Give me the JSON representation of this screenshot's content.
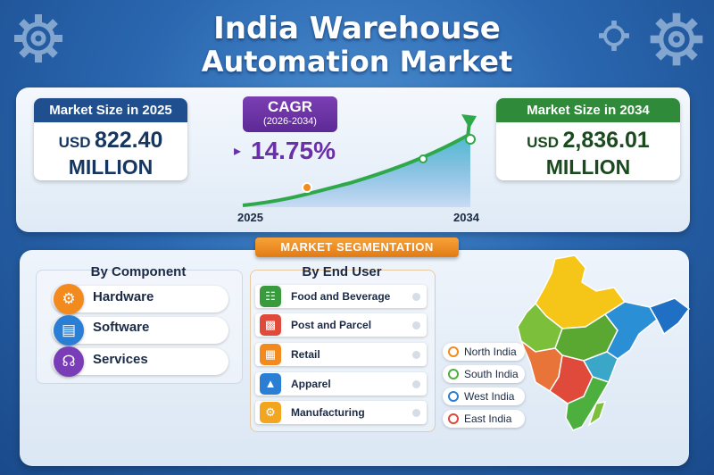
{
  "title": {
    "line1": "India Warehouse",
    "line2": "Automation Market"
  },
  "kpi": {
    "size_2025": {
      "label": "Market Size in 2025",
      "unit": "USD",
      "value": "822.40",
      "scale": "MILLION",
      "header_color": "#1f4f8f"
    },
    "size_2034": {
      "label": "Market Size in 2034",
      "unit": "USD",
      "value": "2,836.01",
      "scale": "MILLION",
      "header_color": "#2f8a3a"
    },
    "cagr": {
      "label": "CAGR",
      "period": "(2026-2034)",
      "value": "14.75%",
      "color": "#6b2fa8"
    }
  },
  "growth_chart": {
    "start_year": "2025",
    "end_year": "2034"
  },
  "segmentation": {
    "banner": "MARKET SEGMENTATION",
    "by_component": {
      "heading": "By Component",
      "items": [
        {
          "label": "Hardware",
          "icon": "robot-arm-icon",
          "color": "#f28a1e"
        },
        {
          "label": "Software",
          "icon": "monitor-code-icon",
          "color": "#2a7fd4"
        },
        {
          "label": "Services",
          "icon": "headset-icon",
          "color": "#7a3db8"
        }
      ]
    },
    "by_end_user": {
      "heading": "By End User",
      "items": [
        {
          "label": "Food and Beverage",
          "icon": "shopping-cart-icon",
          "color": "#3a9a3e"
        },
        {
          "label": "Post and Parcel",
          "icon": "truck-icon",
          "color": "#e04a3a"
        },
        {
          "label": "Retail",
          "icon": "storefront-icon",
          "color": "#f28a1e"
        },
        {
          "label": "Apparel",
          "icon": "hanger-icon",
          "color": "#2a7fd4"
        },
        {
          "label": "Manufacturing",
          "icon": "factory-gear-icon",
          "color": "#f2a51e"
        }
      ]
    },
    "regions": [
      {
        "label": "North India",
        "color": "#f28a1e"
      },
      {
        "label": "South India",
        "color": "#4caf3e"
      },
      {
        "label": "West India",
        "color": "#2a7fd4"
      },
      {
        "label": "East India",
        "color": "#e04a3a"
      }
    ]
  }
}
